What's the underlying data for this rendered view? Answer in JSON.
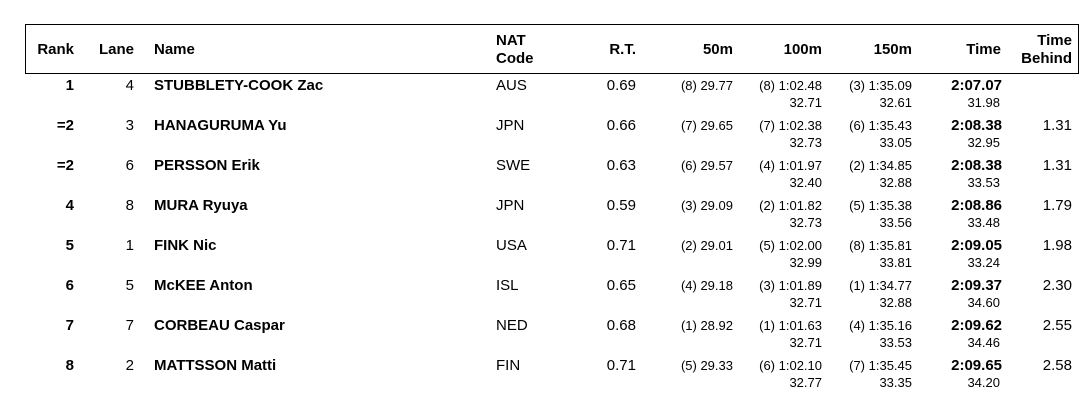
{
  "header": {
    "rank": "Rank",
    "lane": "Lane",
    "name": "Name",
    "nat": [
      "NAT",
      "Code"
    ],
    "rt": "R.T.",
    "s50": "50m",
    "s100": "100m",
    "s150": "150m",
    "time": "Time",
    "behind": [
      "Time",
      "Behind"
    ]
  },
  "rows": [
    {
      "rank": "1",
      "lane": "4",
      "name": "STUBBLETY-COOK Zac",
      "nat": "AUS",
      "rt": "0.69",
      "s50": "(8) 29.77",
      "s100": "(8) 1:02.48",
      "s100_split": "32.71",
      "s150": "(3) 1:35.09",
      "s150_split": "32.61",
      "time": "2:07.07",
      "time_split": "31.98"
    },
    {
      "rank": "=2",
      "lane": "3",
      "name": "HANAGURUMA Yu",
      "nat": "JPN",
      "rt": "0.66",
      "s50": "(7) 29.65",
      "s100": "(7) 1:02.38",
      "s100_split": "32.73",
      "s150": "(6) 1:35.43",
      "s150_split": "33.05",
      "time": "2:08.38",
      "time_split": "32.95",
      "behind": "1.31"
    },
    {
      "rank": "=2",
      "lane": "6",
      "name": "PERSSON Erik",
      "nat": "SWE",
      "rt": "0.63",
      "s50": "(6) 29.57",
      "s100": "(4) 1:01.97",
      "s100_split": "32.40",
      "s150": "(2) 1:34.85",
      "s150_split": "32.88",
      "time": "2:08.38",
      "time_split": "33.53",
      "behind": "1.31"
    },
    {
      "rank": "4",
      "lane": "8",
      "name": "MURA Ryuya",
      "nat": "JPN",
      "rt": "0.59",
      "s50": "(3) 29.09",
      "s100": "(2) 1:01.82",
      "s100_split": "32.73",
      "s150": "(5) 1:35.38",
      "s150_split": "33.56",
      "time": "2:08.86",
      "time_split": "33.48",
      "behind": "1.79"
    },
    {
      "rank": "5",
      "lane": "1",
      "name": "FINK Nic",
      "nat": "USA",
      "rt": "0.71",
      "s50": "(2) 29.01",
      "s100": "(5) 1:02.00",
      "s100_split": "32.99",
      "s150": "(8) 1:35.81",
      "s150_split": "33.81",
      "time": "2:09.05",
      "time_split": "33.24",
      "behind": "1.98"
    },
    {
      "rank": "6",
      "lane": "5",
      "name": "McKEE Anton",
      "nat": "ISL",
      "rt": "0.65",
      "s50": "(4) 29.18",
      "s100": "(3) 1:01.89",
      "s100_split": "32.71",
      "s150": "(1) 1:34.77",
      "s150_split": "32.88",
      "time": "2:09.37",
      "time_split": "34.60",
      "behind": "2.30"
    },
    {
      "rank": "7",
      "lane": "7",
      "name": "CORBEAU Caspar",
      "nat": "NED",
      "rt": "0.68",
      "s50": "(1) 28.92",
      "s100": "(1) 1:01.63",
      "s100_split": "32.71",
      "s150": "(4) 1:35.16",
      "s150_split": "33.53",
      "time": "2:09.62",
      "time_split": "34.46",
      "behind": "2.55"
    },
    {
      "rank": "8",
      "lane": "2",
      "name": "MATTSSON Matti",
      "nat": "FIN",
      "rt": "0.71",
      "s50": "(5) 29.33",
      "s100": "(6) 1:02.10",
      "s100_split": "32.77",
      "s150": "(7) 1:35.45",
      "s150_split": "33.35",
      "time": "2:09.65",
      "time_split": "34.20",
      "behind": "2.58"
    }
  ]
}
